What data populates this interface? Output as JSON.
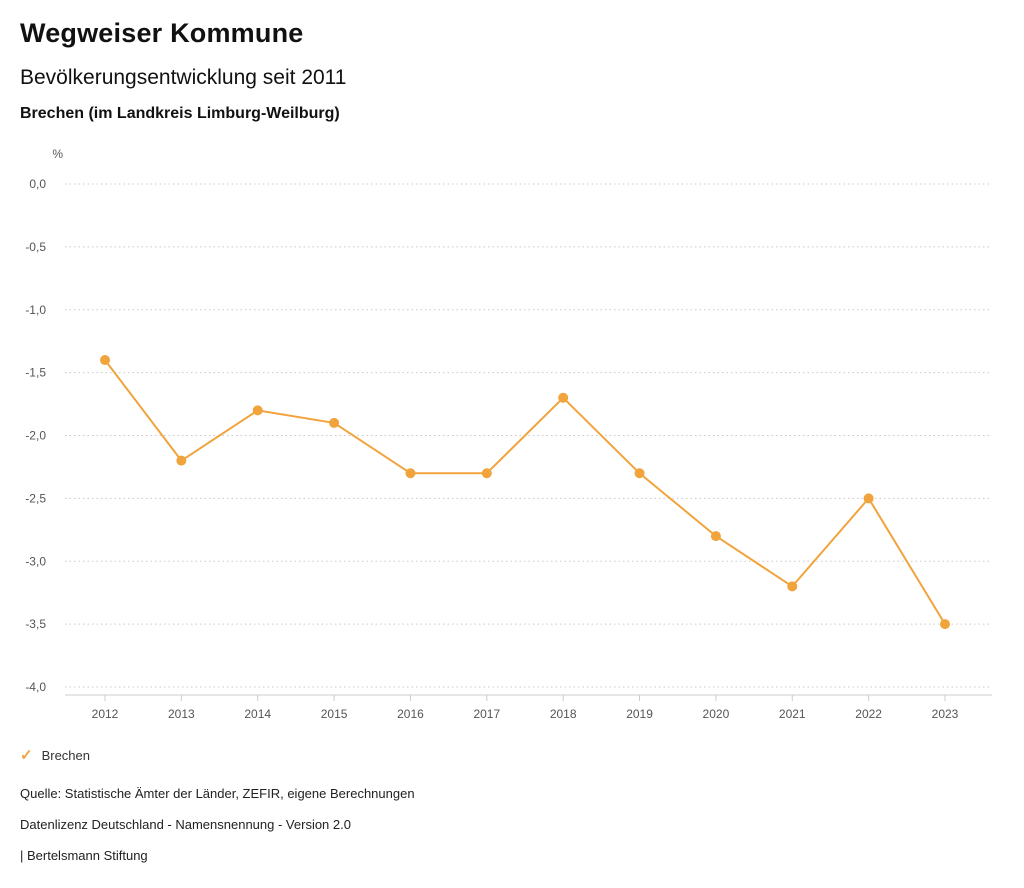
{
  "header": {
    "title": "Wegweiser Kommune",
    "subtitle": "Bevölkerungsentwicklung seit 2011",
    "region": "Brechen (im Landkreis Limburg-Weilburg)"
  },
  "chart_data": {
    "type": "line",
    "title": "Bevölkerungsentwicklung seit 2011",
    "unit_label": "%",
    "categories": [
      "2012",
      "2013",
      "2014",
      "2015",
      "2016",
      "2017",
      "2018",
      "2019",
      "2020",
      "2021",
      "2022",
      "2023"
    ],
    "series": [
      {
        "name": "Brechen",
        "color": "#f1a33c",
        "values": [
          -1.4,
          -2.2,
          -1.8,
          -1.9,
          -2.3,
          -2.3,
          -1.7,
          -2.3,
          -2.8,
          -3.2,
          -2.5,
          -3.5
        ]
      }
    ],
    "ylim": [
      -4.0,
      0.0
    ],
    "ytick_step": 0.5,
    "ytick_labels": [
      "0,0",
      "-0,5",
      "-1,0",
      "-1,5",
      "-2,0",
      "-2,5",
      "-3,0",
      "-3,5",
      "-4,0"
    ],
    "grid": "horizontal dotted",
    "legend_position": "bottom-left"
  },
  "legend": {
    "items": [
      {
        "label": "Brechen",
        "marker": "check",
        "color": "#f1a33c"
      }
    ]
  },
  "footer": {
    "source": "Quelle: Statistische Ämter der Länder, ZEFIR, eigene Berechnungen",
    "license": "Datenlizenz Deutschland - Namensnennung - Version 2.0",
    "attribution": "| Bertelsmann Stiftung"
  }
}
